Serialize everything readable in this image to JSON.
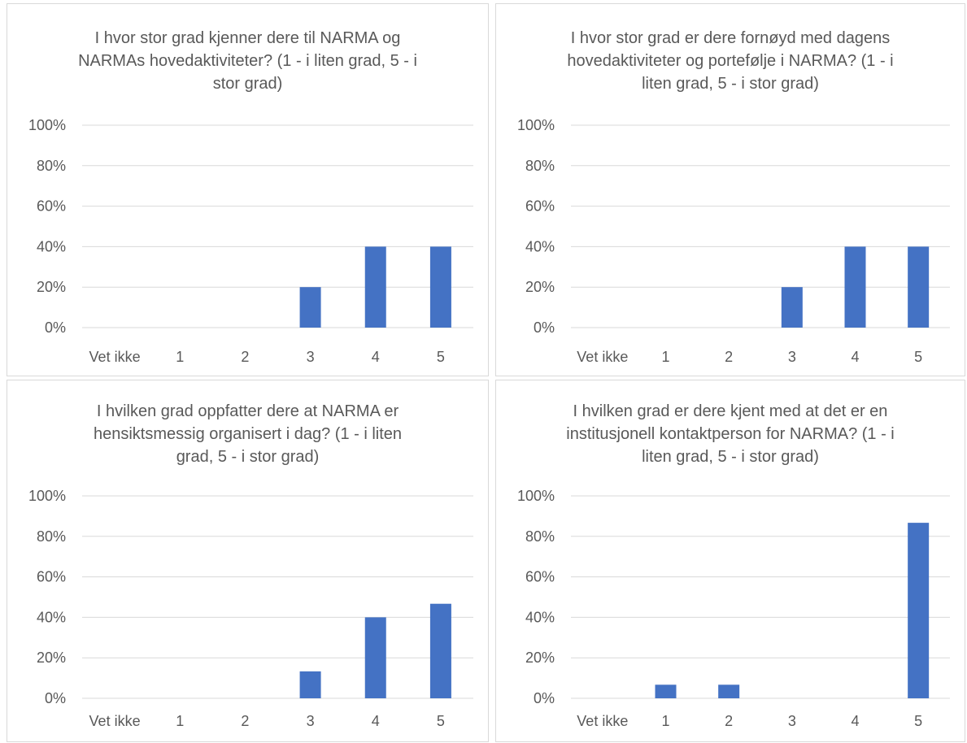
{
  "chart_data": [
    {
      "type": "bar",
      "title_lines": [
        "I hvor stor grad kjenner dere til NARMA og",
        "NARMAs hovedaktiviteter? (1 - i liten grad, 5 - i",
        "stor grad)"
      ],
      "categories": [
        "Vet ikke",
        "1",
        "2",
        "3",
        "4",
        "5"
      ],
      "values": [
        0,
        0,
        0,
        20,
        40,
        40
      ],
      "ylim": [
        0,
        100
      ],
      "yticks": [
        "0%",
        "20%",
        "40%",
        "60%",
        "80%",
        "100%"
      ],
      "bar_color": "#4472c4",
      "grid": true
    },
    {
      "type": "bar",
      "title_lines": [
        "I hvor stor grad er dere fornøyd med dagens",
        "hovedaktiviteter og portefølje i NARMA? (1 - i",
        "liten grad, 5 - i stor grad)"
      ],
      "categories": [
        "Vet ikke",
        "1",
        "2",
        "3",
        "4",
        "5"
      ],
      "values": [
        0,
        0,
        0,
        20,
        40,
        40
      ],
      "ylim": [
        0,
        100
      ],
      "yticks": [
        "0%",
        "20%",
        "40%",
        "60%",
        "80%",
        "100%"
      ],
      "bar_color": "#4472c4",
      "grid": true
    },
    {
      "type": "bar",
      "title_lines": [
        "I hvilken grad oppfatter dere at NARMA er",
        "hensiktsmessig organisert i dag? (1 - i liten",
        "grad, 5 - i stor grad)"
      ],
      "categories": [
        "Vet ikke",
        "1",
        "2",
        "3",
        "4",
        "5"
      ],
      "values": [
        0,
        0,
        0,
        13.3,
        40,
        46.7
      ],
      "ylim": [
        0,
        100
      ],
      "yticks": [
        "0%",
        "20%",
        "40%",
        "60%",
        "80%",
        "100%"
      ],
      "bar_color": "#4472c4",
      "grid": true
    },
    {
      "type": "bar",
      "title_lines": [
        "I hvilken grad er dere kjent med at det er en",
        "institusjonell kontaktperson for NARMA? (1 - i",
        "liten grad, 5 - i stor grad)"
      ],
      "categories": [
        "Vet ikke",
        "1",
        "2",
        "3",
        "4",
        "5"
      ],
      "values": [
        0,
        6.7,
        6.7,
        0,
        0,
        86.7
      ],
      "ylim": [
        0,
        100
      ],
      "yticks": [
        "0%",
        "20%",
        "40%",
        "60%",
        "80%",
        "100%"
      ],
      "bar_color": "#4472c4",
      "grid": true
    }
  ]
}
